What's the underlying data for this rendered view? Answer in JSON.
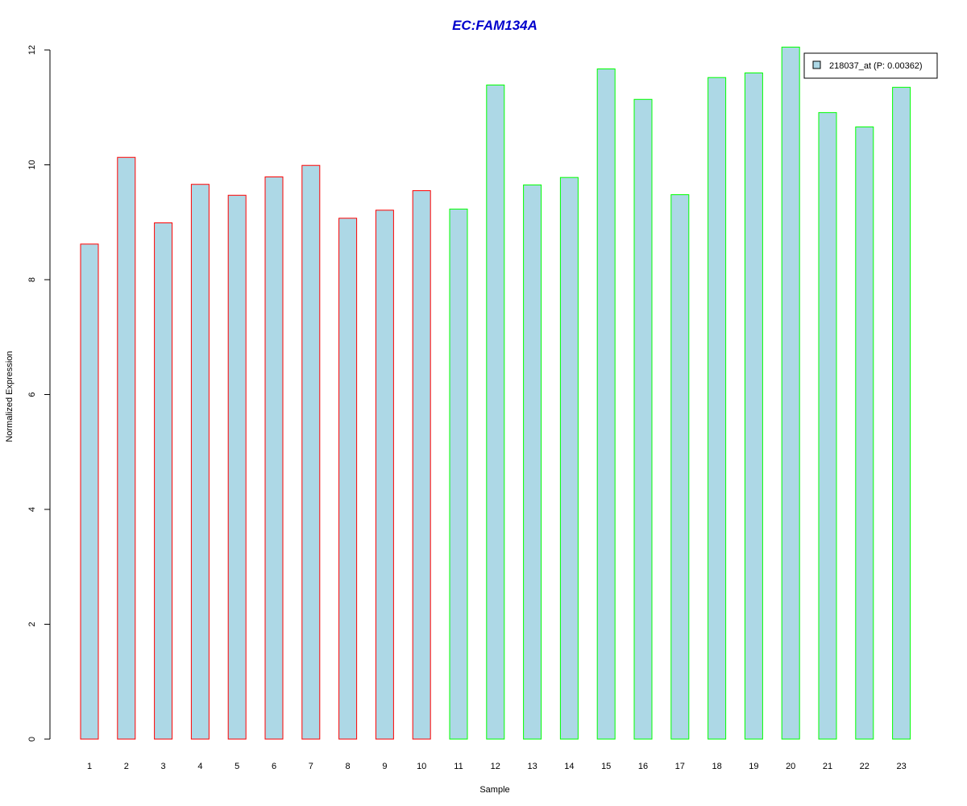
{
  "chart_data": {
    "type": "bar",
    "title": "EC:FAM134A",
    "xlabel": "Sample",
    "ylabel": "Normalized Expression",
    "ylim": [
      0,
      12
    ],
    "yticks": [
      0,
      2,
      4,
      6,
      8,
      10,
      12
    ],
    "categories": [
      "1",
      "2",
      "3",
      "4",
      "5",
      "6",
      "7",
      "8",
      "9",
      "10",
      "11",
      "12",
      "13",
      "14",
      "15",
      "16",
      "17",
      "18",
      "19",
      "20",
      "21",
      "22",
      "23"
    ],
    "series": [
      {
        "name": "218037_at (P: 0.00362)",
        "values": [
          8.62,
          10.13,
          8.99,
          9.66,
          9.47,
          9.79,
          9.99,
          9.07,
          9.21,
          9.55,
          9.23,
          11.39,
          9.65,
          9.78,
          11.67,
          11.14,
          9.48,
          11.52,
          11.6,
          12.05,
          10.91,
          10.66,
          11.35
        ]
      }
    ],
    "bar_groups": [
      "red",
      "red",
      "red",
      "red",
      "red",
      "red",
      "red",
      "red",
      "red",
      "red",
      "green",
      "green",
      "green",
      "green",
      "green",
      "green",
      "green",
      "green",
      "green",
      "green",
      "green",
      "green",
      "green"
    ],
    "grid": false,
    "legend_position": "top-right",
    "colors": {
      "bar_fill": "#add8e6",
      "group_red": "#ff0000",
      "group_green": "#00ff00",
      "title": "#0000cc",
      "axis": "#000000"
    }
  }
}
